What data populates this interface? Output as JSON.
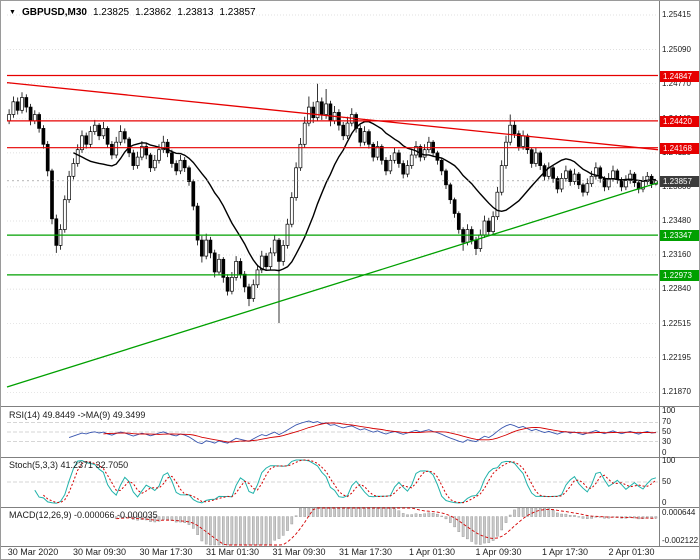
{
  "header": {
    "marker": "▼",
    "symbol": "GBPUSD,M30",
    "open": "1.23825",
    "high": "1.23862",
    "low": "1.23813",
    "close": "1.23857"
  },
  "panes": {
    "rsi_label": "RSI(14) 49.8449 ->MA(9) 49.3499",
    "stoch_label": "Stoch(5,3,3) 41.2371 32.7050",
    "macd_label": "MACD(12,26,9) -0.000066 -0.000035"
  },
  "price_labels": {
    "r1": "1.24847",
    "r2": "1.24420",
    "r3": "1.24168",
    "current": "1.23857",
    "s1": "1.23347",
    "s2": "1.22973"
  },
  "axis": {
    "price_ticks": [
      "1.25415",
      "1.25090",
      "1.24770",
      "1.24440",
      "1.24120",
      "1.23800",
      "1.23480",
      "1.23160",
      "1.22840",
      "1.22515",
      "1.22195",
      "1.21870"
    ],
    "time_labels": [
      "30 Mar 2020",
      "30 Mar 09:30",
      "30 Mar 17:30",
      "31 Mar 01:30",
      "31 Mar 09:30",
      "31 Mar 17:30",
      "1 Apr 01:30",
      "1 Apr 09:30",
      "1 Apr 17:30",
      "2 Apr 01:30"
    ],
    "rsi_ticks": [
      "100",
      "70",
      "50",
      "30",
      "0"
    ],
    "stoch_ticks": [
      "100",
      "50",
      "0"
    ],
    "macd_ticks": [
      "0.000644",
      "-0.002122"
    ]
  },
  "chart_data": {
    "type": "candlestick",
    "symbol": "GBPUSD",
    "timeframe": "M30",
    "ohlc": {
      "open": 1.23825,
      "high": 1.23862,
      "low": 1.23813,
      "close": 1.23857
    },
    "current_price": 1.23857,
    "price_range": {
      "max": 1.255,
      "min": 1.2176
    },
    "levels": {
      "resistance": [
        1.24847,
        1.2442,
        1.24168
      ],
      "support": [
        1.23347,
        1.22973
      ]
    },
    "level_colors": {
      "resistance": "#e60000",
      "support": "#00a000",
      "current": "#3c3c3c"
    },
    "trendlines": [
      {
        "color": "#e60000",
        "from_price": 1.2478,
        "to_price": 1.2415
      },
      {
        "color": "#00a000",
        "from_price": 1.2192,
        "to_price": 1.2384
      }
    ],
    "ma_period": 16,
    "indicators": {
      "rsi": {
        "name": "RSI",
        "period": 14,
        "ma_period": 9,
        "value": 49.8449,
        "ma_value": 49.3499,
        "levels": [
          70,
          50,
          30
        ],
        "range": [
          0,
          100
        ]
      },
      "stoch": {
        "name": "Stochastic",
        "params": [
          5,
          3,
          3
        ],
        "k_value": 41.2371,
        "d_value": 32.705,
        "levels": [
          50
        ],
        "range": [
          0,
          100
        ]
      },
      "macd": {
        "name": "MACD",
        "params": [
          12,
          26,
          9
        ],
        "value": -6.6e-05,
        "signal_value": -3.5e-05,
        "range": [
          0.000644,
          -0.002122
        ]
      }
    },
    "candles": [
      [
        1.2442,
        1.2453,
        1.2439,
        1.2448
      ],
      [
        1.2448,
        1.2465,
        1.2445,
        1.246
      ],
      [
        1.246,
        1.2464,
        1.2448,
        1.2452
      ],
      [
        1.2452,
        1.2469,
        1.2449,
        1.2464
      ],
      [
        1.2464,
        1.2467,
        1.245,
        1.2455
      ],
      [
        1.2455,
        1.2458,
        1.2438,
        1.2442
      ],
      [
        1.2442,
        1.2452,
        1.2439,
        1.2448
      ],
      [
        1.2448,
        1.245,
        1.2431,
        1.2435
      ],
      [
        1.2435,
        1.2438,
        1.2416,
        1.242
      ],
      [
        1.242,
        1.2423,
        1.239,
        1.2395
      ],
      [
        1.2395,
        1.2397,
        1.2345,
        1.235
      ],
      [
        1.235,
        1.2354,
        1.2318,
        1.2325
      ],
      [
        1.2325,
        1.2345,
        1.2321,
        1.234
      ],
      [
        1.234,
        1.2372,
        1.2337,
        1.2368
      ],
      [
        1.2368,
        1.2395,
        1.2365,
        1.239
      ],
      [
        1.239,
        1.2407,
        1.2387,
        1.2402
      ],
      [
        1.2402,
        1.242,
        1.2399,
        1.2415
      ],
      [
        1.2415,
        1.2433,
        1.2412,
        1.2428
      ],
      [
        1.2428,
        1.2431,
        1.2416,
        1.242
      ],
      [
        1.242,
        1.2437,
        1.2417,
        1.2432
      ],
      [
        1.2432,
        1.2443,
        1.2429,
        1.2438
      ],
      [
        1.2438,
        1.244,
        1.2424,
        1.2428
      ],
      [
        1.2428,
        1.2441,
        1.2425,
        1.2435
      ],
      [
        1.2435,
        1.2437,
        1.2417,
        1.242
      ],
      [
        1.242,
        1.2423,
        1.2406,
        1.241
      ],
      [
        1.241,
        1.2427,
        1.2407,
        1.2422
      ],
      [
        1.2422,
        1.2438,
        1.2419,
        1.2432
      ],
      [
        1.2432,
        1.2435,
        1.2421,
        1.2425
      ],
      [
        1.2425,
        1.2427,
        1.2408,
        1.2412
      ],
      [
        1.2412,
        1.2415,
        1.2396,
        1.24
      ],
      [
        1.24,
        1.2413,
        1.2397,
        1.2408
      ],
      [
        1.2408,
        1.2423,
        1.2405,
        1.2418
      ],
      [
        1.2418,
        1.2421,
        1.2406,
        1.241
      ],
      [
        1.241,
        1.2412,
        1.2394,
        1.2398
      ],
      [
        1.2398,
        1.241,
        1.2395,
        1.2405
      ],
      [
        1.2405,
        1.242,
        1.2402,
        1.2415
      ],
      [
        1.2415,
        1.2428,
        1.2412,
        1.2422
      ],
      [
        1.2422,
        1.2425,
        1.2408,
        1.2412
      ],
      [
        1.2412,
        1.2415,
        1.2398,
        1.2402
      ],
      [
        1.2402,
        1.2405,
        1.2391,
        1.2395
      ],
      [
        1.2395,
        1.241,
        1.2392,
        1.2405
      ],
      [
        1.2405,
        1.2408,
        1.2394,
        1.2398
      ],
      [
        1.2398,
        1.24,
        1.2381,
        1.2385
      ],
      [
        1.2385,
        1.2387,
        1.2358,
        1.2362
      ],
      [
        1.2362,
        1.2365,
        1.2325,
        1.233
      ],
      [
        1.233,
        1.2334,
        1.2309,
        1.2315
      ],
      [
        1.2315,
        1.2336,
        1.2312,
        1.233
      ],
      [
        1.233,
        1.2333,
        1.2313,
        1.2318
      ],
      [
        1.2318,
        1.2321,
        1.2295,
        1.23
      ],
      [
        1.23,
        1.2317,
        1.2297,
        1.2312
      ],
      [
        1.2312,
        1.2314,
        1.229,
        1.2295
      ],
      [
        1.2295,
        1.2298,
        1.2278,
        1.2282
      ],
      [
        1.2282,
        1.23,
        1.2279,
        1.2295
      ],
      [
        1.2295,
        1.2315,
        1.2292,
        1.231
      ],
      [
        1.231,
        1.2313,
        1.2294,
        1.2298
      ],
      [
        1.2298,
        1.2301,
        1.2281,
        1.2286
      ],
      [
        1.2286,
        1.2289,
        1.2268,
        1.2275
      ],
      [
        1.2275,
        1.2293,
        1.2272,
        1.2288
      ],
      [
        1.2288,
        1.2307,
        1.2285,
        1.2302
      ],
      [
        1.2302,
        1.232,
        1.2299,
        1.2315
      ],
      [
        1.2315,
        1.2318,
        1.2301,
        1.2305
      ],
      [
        1.2305,
        1.2323,
        1.2302,
        1.2318
      ],
      [
        1.2318,
        1.2335,
        1.2315,
        1.233
      ],
      [
        1.233,
        1.2332,
        1.2252,
        1.231
      ],
      [
        1.231,
        1.233,
        1.2306,
        1.2325
      ],
      [
        1.2325,
        1.235,
        1.2322,
        1.2345
      ],
      [
        1.2345,
        1.2375,
        1.2342,
        1.237
      ],
      [
        1.237,
        1.2403,
        1.2367,
        1.2398
      ],
      [
        1.2398,
        1.2426,
        1.2395,
        1.242
      ],
      [
        1.242,
        1.2446,
        1.2417,
        1.244
      ],
      [
        1.244,
        1.2465,
        1.2437,
        1.2455
      ],
      [
        1.2455,
        1.246,
        1.244,
        1.2445
      ],
      [
        1.2445,
        1.2477,
        1.2442,
        1.246
      ],
      [
        1.246,
        1.2464,
        1.2443,
        1.2448
      ],
      [
        1.2448,
        1.2472,
        1.2444,
        1.2458
      ],
      [
        1.2458,
        1.2461,
        1.2437,
        1.2442
      ],
      [
        1.2442,
        1.2456,
        1.2439,
        1.245
      ],
      [
        1.245,
        1.2453,
        1.2433,
        1.2438
      ],
      [
        1.2438,
        1.2441,
        1.2424,
        1.2428
      ],
      [
        1.2428,
        1.2446,
        1.2425,
        1.244
      ],
      [
        1.244,
        1.2454,
        1.2437,
        1.2448
      ],
      [
        1.2448,
        1.245,
        1.2431,
        1.2435
      ],
      [
        1.2435,
        1.2438,
        1.2418,
        1.2422
      ],
      [
        1.2422,
        1.2437,
        1.2419,
        1.2432
      ],
      [
        1.2432,
        1.2434,
        1.2416,
        1.242
      ],
      [
        1.242,
        1.2422,
        1.2404,
        1.2408
      ],
      [
        1.2408,
        1.2423,
        1.2405,
        1.2418
      ],
      [
        1.2418,
        1.242,
        1.2401,
        1.2405
      ],
      [
        1.2405,
        1.2408,
        1.2391,
        1.2395
      ],
      [
        1.2395,
        1.241,
        1.2392,
        1.2405
      ],
      [
        1.2405,
        1.2417,
        1.2402,
        1.2412
      ],
      [
        1.2412,
        1.2415,
        1.2398,
        1.2402
      ],
      [
        1.2402,
        1.2405,
        1.2388,
        1.2392
      ],
      [
        1.2392,
        1.2405,
        1.2389,
        1.24
      ],
      [
        1.24,
        1.2415,
        1.2397,
        1.241
      ],
      [
        1.241,
        1.2423,
        1.2407,
        1.2418
      ],
      [
        1.2418,
        1.242,
        1.2404,
        1.2408
      ],
      [
        1.2408,
        1.242,
        1.2405,
        1.2415
      ],
      [
        1.2415,
        1.2427,
        1.2412,
        1.2422
      ],
      [
        1.2422,
        1.2424,
        1.2408,
        1.2412
      ],
      [
        1.2412,
        1.2414,
        1.2401,
        1.2405
      ],
      [
        1.2405,
        1.2407,
        1.2391,
        1.2395
      ],
      [
        1.2395,
        1.2397,
        1.2378,
        1.2382
      ],
      [
        1.2382,
        1.2384,
        1.2364,
        1.2368
      ],
      [
        1.2368,
        1.237,
        1.2351,
        1.2355
      ],
      [
        1.2355,
        1.2357,
        1.2336,
        1.234
      ],
      [
        1.234,
        1.2342,
        1.232,
        1.2328
      ],
      [
        1.2328,
        1.2345,
        1.2325,
        1.234
      ],
      [
        1.234,
        1.2343,
        1.2326,
        1.233
      ],
      [
        1.233,
        1.2333,
        1.2316,
        1.2322
      ],
      [
        1.2322,
        1.234,
        1.2319,
        1.2335
      ],
      [
        1.2335,
        1.2353,
        1.2332,
        1.2348
      ],
      [
        1.2348,
        1.2351,
        1.2334,
        1.2338
      ],
      [
        1.2338,
        1.2357,
        1.2335,
        1.2352
      ],
      [
        1.2352,
        1.238,
        1.2349,
        1.2375
      ],
      [
        1.2375,
        1.2405,
        1.2372,
        1.24
      ],
      [
        1.24,
        1.2428,
        1.2397,
        1.2422
      ],
      [
        1.2422,
        1.2448,
        1.2419,
        1.2438
      ],
      [
        1.2438,
        1.2442,
        1.2426,
        1.243
      ],
      [
        1.243,
        1.2433,
        1.2414,
        1.2418
      ],
      [
        1.2418,
        1.2433,
        1.2415,
        1.2428
      ],
      [
        1.2428,
        1.243,
        1.2411,
        1.2415
      ],
      [
        1.2415,
        1.2417,
        1.2398,
        1.2402
      ],
      [
        1.2402,
        1.2417,
        1.2399,
        1.2412
      ],
      [
        1.2412,
        1.2414,
        1.2396,
        1.24
      ],
      [
        1.24,
        1.2402,
        1.2386,
        1.239
      ],
      [
        1.239,
        1.2403,
        1.2387,
        1.2398
      ],
      [
        1.2398,
        1.24,
        1.2384,
        1.2388
      ],
      [
        1.2388,
        1.239,
        1.2374,
        1.2378
      ],
      [
        1.2378,
        1.2393,
        1.2375,
        1.2388
      ],
      [
        1.2388,
        1.24,
        1.2385,
        1.2395
      ],
      [
        1.2395,
        1.2397,
        1.2381,
        1.2385
      ],
      [
        1.2385,
        1.2397,
        1.2382,
        1.2392
      ],
      [
        1.2392,
        1.2394,
        1.2378,
        1.2382
      ],
      [
        1.2382,
        1.2384,
        1.2371,
        1.2375
      ],
      [
        1.2375,
        1.2388,
        1.2372,
        1.2383
      ],
      [
        1.2383,
        1.2395,
        1.238,
        1.239
      ],
      [
        1.239,
        1.2403,
        1.2387,
        1.2398
      ],
      [
        1.2398,
        1.24,
        1.2384,
        1.2388
      ],
      [
        1.2388,
        1.239,
        1.2376,
        1.238
      ],
      [
        1.238,
        1.2393,
        1.2377,
        1.2388
      ],
      [
        1.2388,
        1.24,
        1.2385,
        1.2395
      ],
      [
        1.2395,
        1.2397,
        1.2383,
        1.2387
      ],
      [
        1.2387,
        1.2389,
        1.2376,
        1.238
      ],
      [
        1.238,
        1.2391,
        1.2377,
        1.2386
      ],
      [
        1.2386,
        1.2396,
        1.2383,
        1.2392
      ],
      [
        1.2392,
        1.2394,
        1.238,
        1.2384
      ],
      [
        1.2384,
        1.2386,
        1.2374,
        1.2378
      ],
      [
        1.2378,
        1.239,
        1.2375,
        1.2385
      ],
      [
        1.2385,
        1.2394,
        1.2382,
        1.239
      ],
      [
        1.239,
        1.2392,
        1.2379,
        1.2383
      ],
      [
        1.23825,
        1.23862,
        1.23813,
        1.23857
      ]
    ]
  }
}
